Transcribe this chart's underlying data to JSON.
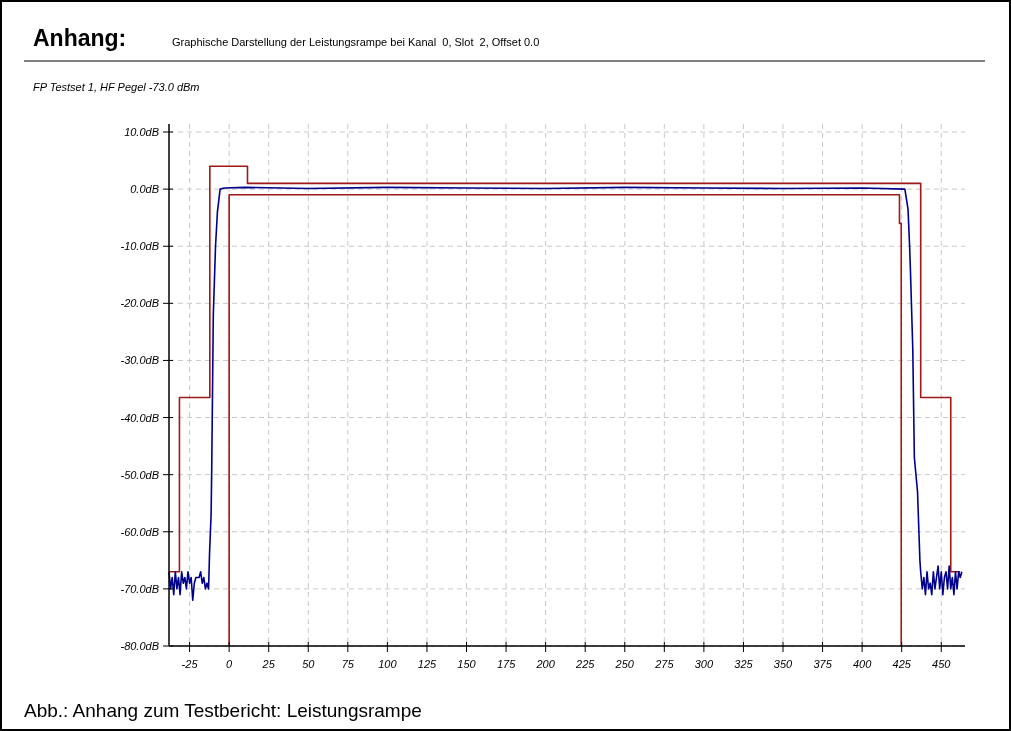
{
  "chart_data": {
    "type": "line",
    "title": "Anhang:",
    "subtitle": "Graphische Darstellung der Leistungsrampe bei Kanal  0, Slot  2, Offset 0.0",
    "annotations": [
      "FP Testset 1, HF Pegel -73.0 dBm",
      "Abb.: Anhang zum Testbericht: Leistungsrampe"
    ],
    "xlim": [
      -38,
      465
    ],
    "xticks": [
      -25,
      0,
      25,
      50,
      75,
      100,
      125,
      150,
      175,
      200,
      225,
      250,
      275,
      300,
      325,
      350,
      375,
      400,
      425,
      450
    ],
    "ylim": [
      -80,
      10
    ],
    "yticks": [
      {
        "value": 10,
        "label": "10.0dB"
      },
      {
        "value": 0,
        "label": "0.0dB"
      },
      {
        "value": -10,
        "label": "-10.0dB"
      },
      {
        "value": -20,
        "label": "-20.0dB"
      },
      {
        "value": -30,
        "label": "-30.0dB"
      },
      {
        "value": -40,
        "label": "-40.0dB"
      },
      {
        "value": -50,
        "label": "-50.0dB"
      },
      {
        "value": -60,
        "label": "-60.0dB"
      },
      {
        "value": -70,
        "label": "-70.0dB"
      },
      {
        "value": -80,
        "label": "-80.0dB"
      }
    ],
    "grid": true,
    "line_style": "solid",
    "marker": "none",
    "series": [
      {
        "color": "#a01818",
        "x": [
          -38,
          -31.4,
          -31.4,
          -12.2,
          -12.2,
          11.6,
          11.6,
          437,
          437,
          456,
          456,
          462
        ],
        "values": [
          -67,
          -67,
          -36.5,
          -36.5,
          4,
          4,
          1,
          1,
          -36.5,
          -36.5,
          -67,
          -67
        ]
      },
      {
        "color": "#a01818",
        "x": [
          0,
          0,
          423.6,
          423.6,
          424.7,
          424.7
        ],
        "values": [
          -80,
          -1,
          -1,
          -6,
          -6,
          -80
        ]
      },
      {
        "color": "#00008b",
        "x": [
          -38,
          -37,
          -36,
          -35,
          -34,
          -33,
          -32,
          -31,
          -30,
          -29,
          -28,
          -27,
          -26,
          -25,
          -24,
          -23,
          -22,
          -21,
          -20,
          -19,
          -18,
          -17,
          -16,
          -15,
          -14,
          -13,
          -12.4,
          -11.4,
          -11,
          -10,
          -8.6,
          -7.4,
          -5.7,
          -3,
          10,
          50,
          100,
          150,
          200,
          250,
          300,
          350,
          400,
          427,
          429,
          430,
          430.5,
          432,
          433,
          435,
          436.5,
          437,
          438,
          439,
          440,
          441,
          442,
          443,
          444,
          445,
          446,
          447,
          448,
          449,
          450,
          451,
          452,
          453,
          454,
          455,
          456,
          457,
          458,
          459,
          460,
          461,
          462,
          463
        ],
        "values": [
          -67,
          -70,
          -68,
          -71,
          -67,
          -70,
          -68,
          -71,
          -67,
          -69,
          -68,
          -70,
          -67,
          -69,
          -68,
          -72,
          -69,
          -68,
          -68,
          -68,
          -67,
          -69,
          -68,
          -70,
          -69,
          -70,
          -64,
          -57,
          -49,
          -22,
          -10,
          -4,
          0,
          0.2,
          0.3,
          0.1,
          0.3,
          0.2,
          0.1,
          0.3,
          0.2,
          0.1,
          0.2,
          0,
          -3.5,
          -10,
          -14,
          -28,
          -47,
          -53,
          -65,
          -67,
          -70,
          -68,
          -71,
          -67,
          -70,
          -69,
          -71,
          -67,
          -70,
          -68,
          -66,
          -70,
          -67,
          -71,
          -68,
          -67,
          -70,
          -66,
          -70,
          -68,
          -71,
          -67,
          -70,
          -67,
          -68,
          -67
        ]
      }
    ]
  }
}
